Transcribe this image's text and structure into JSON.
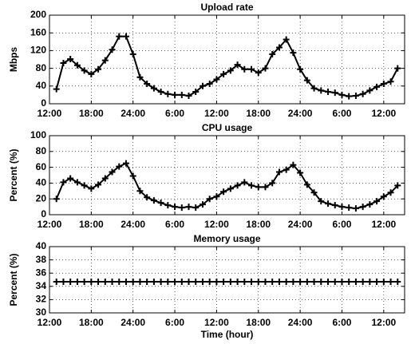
{
  "chart_data": [
    {
      "type": "line",
      "title": "Upload rate",
      "ylabel": "Mbps",
      "x": [
        13,
        14,
        15,
        16,
        17,
        18,
        19,
        20,
        21,
        22,
        23,
        24,
        25,
        26,
        27,
        28,
        29,
        30,
        31,
        32,
        33,
        34,
        35,
        36,
        37,
        38,
        39,
        40,
        41,
        42,
        43,
        44,
        45,
        46,
        47,
        48,
        49,
        50,
        51,
        52,
        53,
        54,
        55,
        56,
        57,
        58,
        59,
        60,
        61,
        62
      ],
      "series": [
        {
          "name": "Upload rate",
          "color": "#000000",
          "values": [
            33,
            92,
            101,
            87,
            75,
            67,
            78,
            98,
            122,
            152,
            152,
            112,
            60,
            45,
            35,
            27,
            22,
            20,
            20,
            18,
            27,
            40,
            45,
            55,
            67,
            75,
            88,
            78,
            78,
            70,
            80,
            112,
            127,
            145,
            115,
            78,
            53,
            35,
            30,
            27,
            25,
            20,
            17,
            18,
            22,
            30,
            38,
            45,
            50,
            80
          ]
        }
      ],
      "xlim": [
        12,
        63
      ],
      "xticks": [
        {
          "value": 12,
          "label": "12:00"
        },
        {
          "value": 18,
          "label": "18:00"
        },
        {
          "value": 24,
          "label": "24:00"
        },
        {
          "value": 30,
          "label": "6:00"
        },
        {
          "value": 36,
          "label": "12:00"
        },
        {
          "value": 42,
          "label": "18:00"
        },
        {
          "value": 48,
          "label": "24:00"
        },
        {
          "value": 54,
          "label": "6:00"
        },
        {
          "value": 60,
          "label": "12:00"
        }
      ],
      "ylim": [
        0,
        200
      ],
      "yticks": [
        0,
        40,
        80,
        120,
        160,
        200
      ],
      "grid": true
    },
    {
      "type": "line",
      "title": "CPU usage",
      "ylabel": "Percent (%)",
      "x": [
        13,
        14,
        15,
        16,
        17,
        18,
        19,
        20,
        21,
        22,
        23,
        24,
        25,
        26,
        27,
        28,
        29,
        30,
        31,
        32,
        33,
        34,
        35,
        36,
        37,
        38,
        39,
        40,
        41,
        42,
        43,
        44,
        45,
        46,
        47,
        48,
        49,
        50,
        51,
        52,
        53,
        54,
        55,
        56,
        57,
        58,
        59,
        60,
        61,
        62
      ],
      "series": [
        {
          "name": "CPU usage",
          "color": "#000000",
          "values": [
            20,
            41,
            46,
            41,
            37,
            33,
            38,
            46,
            54,
            61,
            65,
            49,
            30,
            22,
            18,
            15,
            12,
            10,
            9,
            10,
            9,
            13,
            20,
            23,
            29,
            33,
            37,
            41,
            37,
            35,
            35,
            40,
            54,
            57,
            63,
            53,
            38,
            28,
            17,
            14,
            12,
            10,
            9,
            8,
            10,
            13,
            17,
            23,
            28,
            37
          ]
        }
      ],
      "xlim": [
        12,
        63
      ],
      "xticks": [
        {
          "value": 12,
          "label": "12:00"
        },
        {
          "value": 18,
          "label": "18:00"
        },
        {
          "value": 24,
          "label": "24:00"
        },
        {
          "value": 30,
          "label": "6:00"
        },
        {
          "value": 36,
          "label": "12:00"
        },
        {
          "value": 42,
          "label": "18:00"
        },
        {
          "value": 48,
          "label": "24:00"
        },
        {
          "value": 54,
          "label": "6:00"
        },
        {
          "value": 60,
          "label": "12:00"
        }
      ],
      "ylim": [
        0,
        100
      ],
      "yticks": [
        0,
        20,
        40,
        60,
        80,
        100
      ],
      "grid": true
    },
    {
      "type": "line",
      "title": "Memory usage",
      "ylabel": "Percent (%)",
      "xlabel": "Time (hour)",
      "x": [
        13,
        14,
        15,
        16,
        17,
        18,
        19,
        20,
        21,
        22,
        23,
        24,
        25,
        26,
        27,
        28,
        29,
        30,
        31,
        32,
        33,
        34,
        35,
        36,
        37,
        38,
        39,
        40,
        41,
        42,
        43,
        44,
        45,
        46,
        47,
        48,
        49,
        50,
        51,
        52,
        53,
        54,
        55,
        56,
        57,
        58,
        59,
        60,
        61,
        62
      ],
      "series": [
        {
          "name": "Memory usage",
          "color": "#000000",
          "values": [
            34.7,
            34.7,
            34.7,
            34.7,
            34.7,
            34.7,
            34.7,
            34.7,
            34.7,
            34.7,
            34.7,
            34.7,
            34.7,
            34.7,
            34.7,
            34.7,
            34.7,
            34.7,
            34.7,
            34.7,
            34.7,
            34.7,
            34.7,
            34.7,
            34.7,
            34.7,
            34.7,
            34.7,
            34.7,
            34.7,
            34.7,
            34.7,
            34.7,
            34.7,
            34.7,
            34.7,
            34.7,
            34.7,
            34.7,
            34.7,
            34.7,
            34.7,
            34.7,
            34.7,
            34.7,
            34.7,
            34.7,
            34.7,
            34.7,
            34.7
          ]
        }
      ],
      "xlim": [
        12,
        63
      ],
      "xticks": [
        {
          "value": 12,
          "label": "12:00"
        },
        {
          "value": 18,
          "label": "18:00"
        },
        {
          "value": 24,
          "label": "24:00"
        },
        {
          "value": 30,
          "label": "6:00"
        },
        {
          "value": 36,
          "label": "12:00"
        },
        {
          "value": 42,
          "label": "18:00"
        },
        {
          "value": 48,
          "label": "24:00"
        },
        {
          "value": 54,
          "label": "6:00"
        },
        {
          "value": 60,
          "label": "12:00"
        }
      ],
      "ylim": [
        30,
        40
      ],
      "yticks": [
        30,
        32,
        34,
        36,
        38,
        40
      ],
      "grid": true
    }
  ]
}
